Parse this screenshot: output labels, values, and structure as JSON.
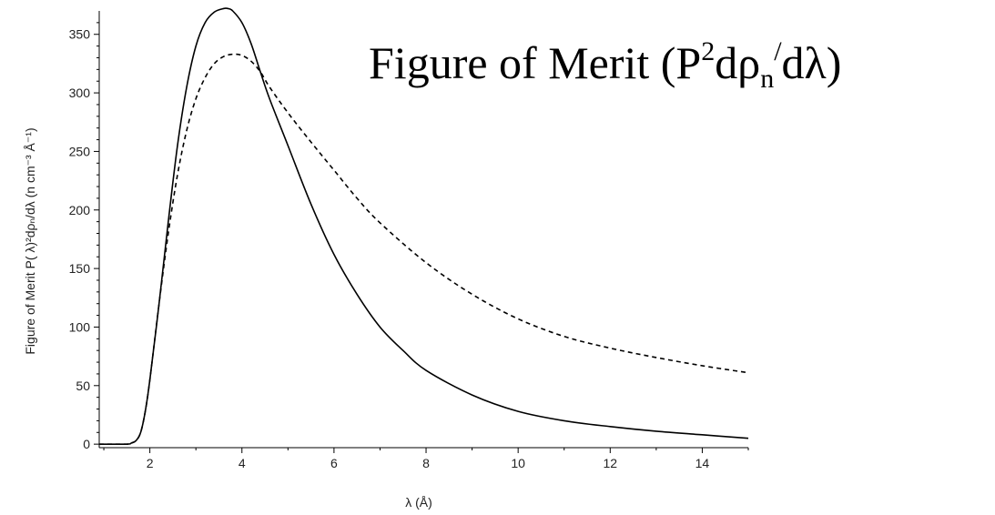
{
  "chart_data": {
    "type": "line",
    "title": {
      "prefix": "Figure of Merit (P",
      "sup": "2",
      "mid": "dρ",
      "sub": "n",
      "slash": "/",
      "suffix": "dλ)"
    },
    "xlabel": "λ (Å)",
    "ylabel": "Figure of Merit P( λ)²dρₙ/dλ  (n cm⁻³ Å⁻¹)",
    "xlim": [
      0.9,
      15
    ],
    "ylim": [
      -3,
      370
    ],
    "x_ticks": [
      2,
      4,
      6,
      8,
      10,
      12,
      14
    ],
    "y_ticks": [
      0,
      50,
      100,
      150,
      200,
      250,
      300,
      350
    ],
    "grid": false,
    "series": [
      {
        "style": "solid",
        "color": "#000000",
        "x": [
          0.9,
          1.5,
          1.6,
          1.7,
          1.8,
          1.9,
          2.0,
          2.2,
          2.4,
          2.6,
          2.8,
          3.0,
          3.2,
          3.4,
          3.6,
          3.7,
          3.8,
          4.0,
          4.2,
          4.4,
          4.6,
          5.0,
          5.5,
          6.0,
          6.5,
          7.0,
          7.5,
          8.0,
          9.0,
          10.0,
          11.0,
          12.0,
          13.0,
          14.0,
          15.0
        ],
        "y": [
          0,
          0,
          1,
          3,
          10,
          28,
          55,
          120,
          190,
          255,
          305,
          340,
          360,
          369,
          372,
          372,
          370,
          360,
          342,
          318,
          295,
          255,
          205,
          162,
          128,
          100,
          80,
          63,
          42,
          28,
          20,
          15,
          11,
          8,
          5
        ]
      },
      {
        "style": "dashed",
        "color": "#000000",
        "x": [
          0.9,
          1.5,
          1.6,
          1.7,
          1.8,
          1.9,
          2.0,
          2.2,
          2.4,
          2.6,
          2.8,
          3.0,
          3.2,
          3.4,
          3.6,
          3.8,
          4.0,
          4.2,
          4.4,
          4.6,
          5.0,
          5.5,
          6.0,
          6.5,
          7.0,
          8.0,
          9.0,
          10.0,
          11.0,
          12.0,
          13.0,
          14.0,
          15.0
        ],
        "y": [
          0,
          0,
          1,
          3,
          10,
          28,
          55,
          120,
          180,
          230,
          268,
          295,
          313,
          325,
          331,
          333,
          332,
          327,
          318,
          305,
          283,
          258,
          234,
          210,
          189,
          155,
          128,
          107,
          92,
          82,
          74,
          67,
          61
        ]
      }
    ]
  }
}
